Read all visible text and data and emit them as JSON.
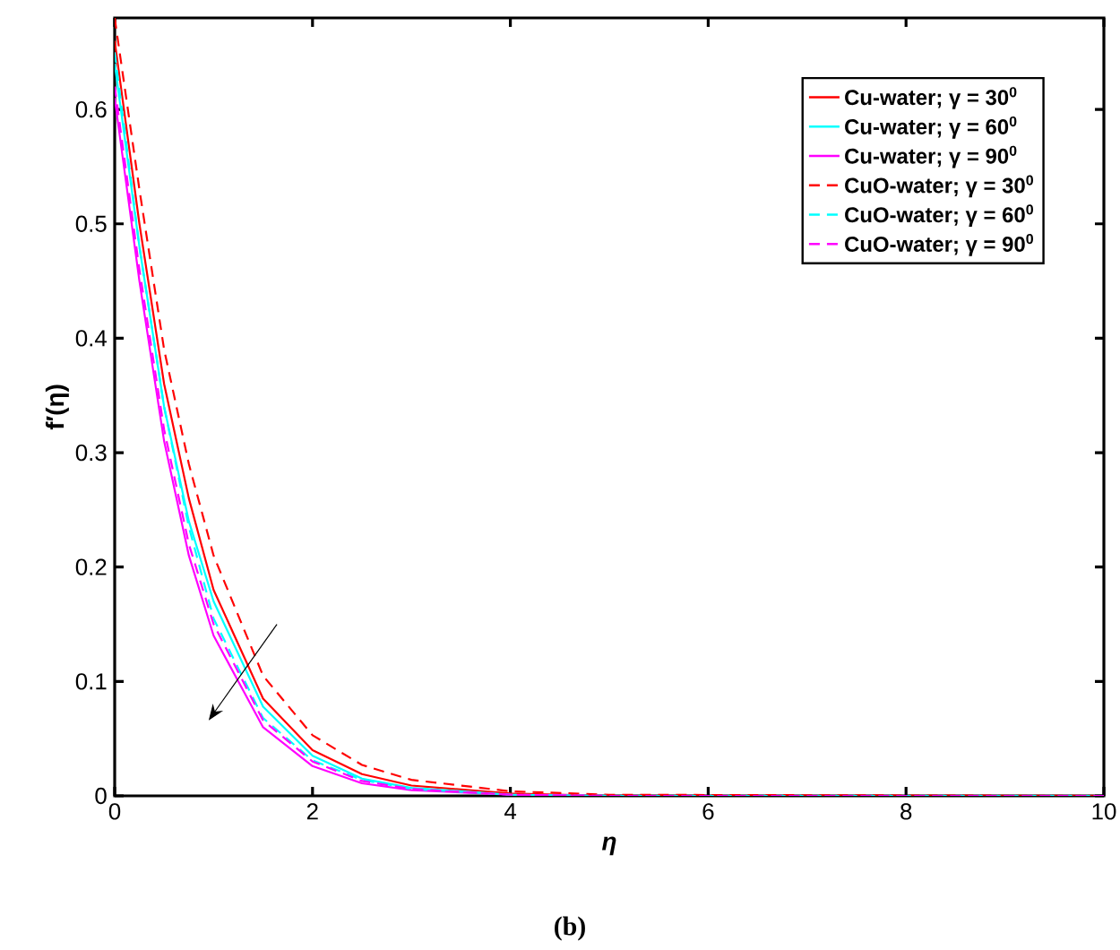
{
  "chart_data": {
    "type": "line",
    "xlabel": "η",
    "ylabel": "f′(η)",
    "annotations": [
      "(b)"
    ],
    "xlim": [
      0,
      10
    ],
    "ylim": [
      0,
      0.68
    ],
    "xticks": [
      0,
      2,
      4,
      6,
      8,
      10
    ],
    "yticks": [
      0,
      0.1,
      0.2,
      0.3,
      0.4,
      0.5,
      0.6
    ],
    "grid": false,
    "legend": "top right",
    "marker": "none",
    "series": [
      {
        "name": "Cu-water; γ = 30$^{0}$",
        "color": "#ff0000",
        "line_style": "solid",
        "x": [
          0,
          0.25,
          0.5,
          0.75,
          1,
          1.5,
          2,
          2.5,
          3,
          4,
          5,
          10
        ],
        "values": [
          0.66,
          0.5,
          0.36,
          0.26,
          0.18,
          0.085,
          0.04,
          0.019,
          0.009,
          0.002,
          0,
          0
        ]
      },
      {
        "name": "Cu-water; γ = 60$^{0}$",
        "color": "#00ffff",
        "line_style": "solid",
        "x": [
          0,
          0.25,
          0.5,
          0.75,
          1,
          1.5,
          2,
          2.5,
          3,
          4,
          5,
          10
        ],
        "values": [
          0.64,
          0.48,
          0.34,
          0.24,
          0.17,
          0.078,
          0.035,
          0.015,
          0.007,
          0.001,
          0,
          0
        ]
      },
      {
        "name": "Cu-water; γ = 90$^{0}$",
        "color": "#ff00ff",
        "line_style": "solid",
        "x": [
          0,
          0.25,
          0.5,
          0.75,
          1,
          1.5,
          2,
          2.5,
          3,
          4,
          5,
          10
        ],
        "values": [
          0.61,
          0.45,
          0.31,
          0.21,
          0.14,
          0.06,
          0.026,
          0.011,
          0.005,
          0.001,
          0,
          0
        ]
      },
      {
        "name": "CuO-water; γ = 30$^{0}$",
        "color": "#ff0000",
        "line_style": "dashed",
        "x": [
          0,
          0.25,
          0.5,
          0.75,
          1,
          1.5,
          2,
          2.5,
          3,
          4,
          5,
          10
        ],
        "values": [
          0.68,
          0.53,
          0.39,
          0.29,
          0.21,
          0.105,
          0.053,
          0.027,
          0.014,
          0.004,
          0.001,
          0
        ]
      },
      {
        "name": "CuO-water; γ = 60$^{0}$",
        "color": "#00ffff",
        "line_style": "dashed",
        "x": [
          0,
          0.25,
          0.5,
          0.75,
          1,
          1.5,
          2,
          2.5,
          3,
          4,
          5,
          10
        ],
        "values": [
          0.65,
          0.48,
          0.34,
          0.235,
          0.155,
          0.068,
          0.031,
          0.014,
          0.006,
          0.001,
          0,
          0
        ]
      },
      {
        "name": "CuO-water; γ = 90$^{0}$",
        "color": "#ff00ff",
        "line_style": "dashed",
        "x": [
          0,
          0.25,
          0.5,
          0.75,
          1,
          1.5,
          2,
          2.5,
          3,
          4,
          5,
          10
        ],
        "values": [
          0.62,
          0.46,
          0.32,
          0.22,
          0.15,
          0.066,
          0.03,
          0.013,
          0.006,
          0.001,
          0,
          0
        ]
      }
    ]
  }
}
